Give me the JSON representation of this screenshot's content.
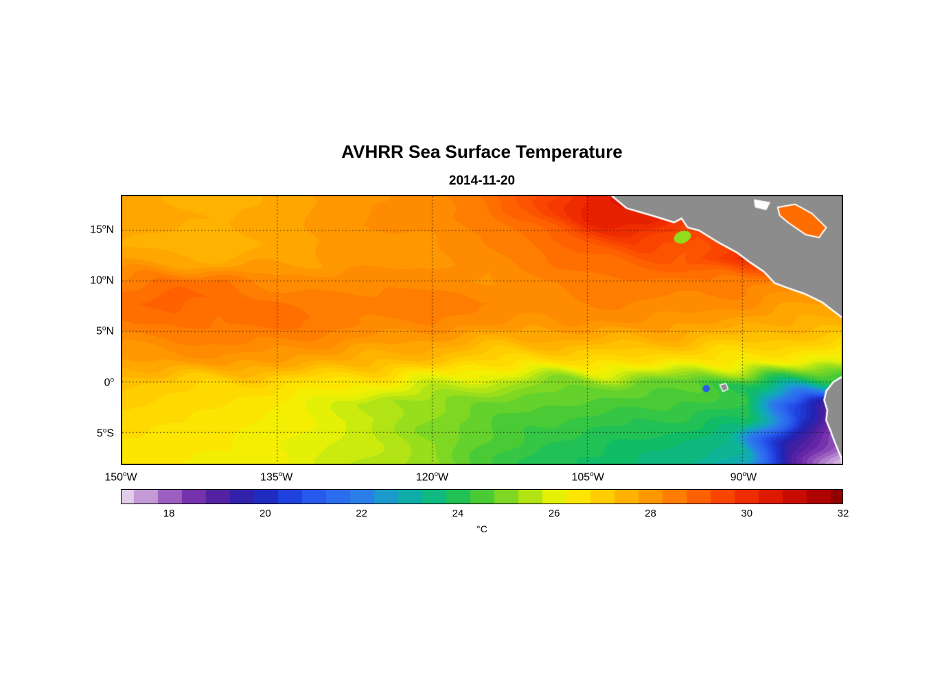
{
  "title": "AVHRR Sea Surface Temperature",
  "subtitle": "2014-11-20",
  "colorbar": {
    "label": "°C",
    "min": 17,
    "max": 32,
    "segment_step": 0.5,
    "tick_values": [
      18,
      20,
      22,
      24,
      26,
      28,
      30,
      32
    ]
  },
  "chart_data": {
    "type": "heatmap",
    "title": "AVHRR Sea Surface Temperature",
    "date": "2014-11-20",
    "units": "°C",
    "projection": "equirectangular",
    "lon_range": [
      -150,
      -80.4
    ],
    "lat_range": [
      -8.1,
      18.4
    ],
    "x_ticks": [
      {
        "value": -150,
        "label": "150",
        "hemi": "W"
      },
      {
        "value": -135,
        "label": "135",
        "hemi": "W"
      },
      {
        "value": -120,
        "label": "120",
        "hemi": "W"
      },
      {
        "value": -105,
        "label": "105",
        "hemi": "W"
      },
      {
        "value": -90,
        "label": "90",
        "hemi": "W"
      }
    ],
    "y_ticks": [
      {
        "value": 15,
        "label": "15",
        "hemi": "N"
      },
      {
        "value": 10,
        "label": "10",
        "hemi": "N"
      },
      {
        "value": 5,
        "label": "5",
        "hemi": "N"
      },
      {
        "value": 0,
        "label": "0",
        "hemi": ""
      },
      {
        "value": -5,
        "label": "5",
        "hemi": "S"
      }
    ],
    "gridline_lons": [
      -135,
      -120,
      -105,
      -90
    ],
    "gridline_lats": [
      15,
      10,
      5,
      0,
      -5
    ],
    "quantize_step": 0.25,
    "grid_lons": [
      -150,
      -145,
      -140,
      -135,
      -130,
      -125,
      -120,
      -115,
      -110,
      -105,
      -100,
      -95,
      -90,
      -85,
      -80
    ],
    "grid_lats": [
      18,
      16,
      14,
      12,
      10,
      8,
      6,
      4,
      2,
      0,
      -2,
      -4,
      -6,
      -8
    ],
    "sst_grid": [
      [
        27.8,
        27.6,
        27.5,
        27.7,
        27.9,
        28.1,
        28.3,
        28.6,
        29.4,
        30.3,
        30.5,
        30.0,
        29.3,
        29.0,
        29.0
      ],
      [
        27.8,
        27.7,
        27.6,
        27.8,
        28.0,
        28.2,
        28.3,
        28.5,
        29.0,
        30.1,
        30.3,
        29.6,
        29.3,
        29.0,
        29.0
      ],
      [
        27.6,
        27.5,
        27.5,
        27.7,
        27.9,
        28.0,
        28.1,
        28.3,
        28.7,
        29.2,
        29.7,
        29.3,
        29.8,
        29.3,
        29.0
      ],
      [
        27.8,
        27.7,
        27.6,
        27.8,
        27.9,
        28.0,
        28.1,
        28.2,
        28.5,
        28.8,
        29.1,
        29.0,
        30.0,
        29.0,
        28.8
      ],
      [
        28.4,
        28.8,
        28.6,
        28.2,
        28.3,
        28.3,
        28.2,
        28.1,
        28.3,
        28.5,
        28.6,
        28.5,
        28.6,
        28.3,
        28.2
      ],
      [
        28.8,
        29.0,
        28.8,
        28.6,
        28.4,
        28.5,
        28.6,
        28.4,
        28.3,
        28.4,
        28.4,
        28.3,
        28.2,
        28.0,
        27.8
      ],
      [
        28.6,
        28.8,
        28.6,
        28.8,
        28.5,
        28.3,
        28.4,
        28.2,
        28.0,
        28.2,
        28.1,
        28.0,
        27.8,
        27.6,
        27.5
      ],
      [
        28.2,
        28.3,
        28.5,
        28.4,
        28.2,
        28.0,
        27.8,
        27.6,
        27.5,
        27.6,
        27.5,
        27.3,
        27.2,
        27.0,
        27.0
      ],
      [
        27.8,
        27.9,
        28.0,
        27.8,
        27.6,
        27.4,
        27.2,
        26.8,
        26.6,
        26.8,
        26.6,
        26.5,
        26.4,
        26.2,
        26.0
      ],
      [
        27.2,
        27.0,
        26.9,
        26.8,
        26.6,
        26.3,
        26.0,
        25.6,
        25.2,
        25.0,
        24.9,
        24.8,
        23.9,
        24.0,
        23.2
      ],
      [
        27.0,
        26.8,
        26.6,
        26.4,
        26.0,
        25.4,
        25.2,
        24.9,
        24.7,
        24.6,
        24.5,
        24.4,
        24.2,
        21.0,
        19.0
      ],
      [
        26.8,
        26.6,
        26.5,
        26.3,
        26.0,
        25.6,
        25.0,
        24.7,
        24.4,
        24.3,
        24.1,
        24.0,
        23.8,
        20.0,
        18.0
      ],
      [
        26.6,
        26.5,
        26.4,
        26.2,
        25.9,
        25.6,
        25.2,
        24.6,
        24.2,
        24.0,
        23.8,
        23.6,
        23.2,
        19.4,
        17.5
      ],
      [
        26.5,
        26.4,
        26.3,
        26.2,
        25.8,
        25.5,
        25.2,
        24.5,
        24.0,
        23.8,
        23.6,
        23.4,
        22.6,
        19.2,
        17.2
      ]
    ],
    "colormap_stops": [
      [
        17.0,
        "#e2cdea"
      ],
      [
        17.5,
        "#c49ad6"
      ],
      [
        18.0,
        "#9b5fc0"
      ],
      [
        18.6,
        "#6e28a8"
      ],
      [
        19.2,
        "#441f9f"
      ],
      [
        19.8,
        "#2023b4"
      ],
      [
        20.5,
        "#1f41dd"
      ],
      [
        21.2,
        "#2a62f2"
      ],
      [
        22.0,
        "#2b7ee8"
      ],
      [
        22.6,
        "#16a0c8"
      ],
      [
        23.2,
        "#0cb49b"
      ],
      [
        23.8,
        "#12bd62"
      ],
      [
        24.4,
        "#3fc93a"
      ],
      [
        25.0,
        "#7ed723"
      ],
      [
        25.6,
        "#bce712"
      ],
      [
        26.1,
        "#eef303"
      ],
      [
        26.6,
        "#ffe100"
      ],
      [
        27.2,
        "#ffc300"
      ],
      [
        27.8,
        "#ffa300"
      ],
      [
        28.4,
        "#ff8300"
      ],
      [
        29.0,
        "#ff6000"
      ],
      [
        29.6,
        "#f94000"
      ],
      [
        30.2,
        "#e92200"
      ],
      [
        30.8,
        "#d10f00"
      ],
      [
        31.4,
        "#b40300"
      ],
      [
        32.0,
        "#920000"
      ]
    ],
    "land_color": "#8c8c8c",
    "coast_color": "#ffffff",
    "land_polygons": {
      "central_america": {
        "coast": [
          [
            -102.6,
            18.4
          ],
          [
            -101.2,
            17.2
          ],
          [
            -98.8,
            16.5
          ],
          [
            -96.6,
            15.8
          ],
          [
            -95.9,
            16.2
          ],
          [
            -95.3,
            15.3
          ],
          [
            -94.2,
            15.0
          ],
          [
            -92.3,
            13.8
          ],
          [
            -90.5,
            12.8
          ],
          [
            -89.2,
            11.8
          ],
          [
            -87.9,
            10.9
          ],
          [
            -86.9,
            9.8
          ],
          [
            -85.6,
            9.3
          ],
          [
            -83.9,
            8.7
          ],
          [
            -82.3,
            7.9
          ],
          [
            -81.3,
            7.1
          ],
          [
            -80.4,
            6.4
          ]
        ],
        "close": [
          [
            -80.4,
            18.4
          ]
        ]
      },
      "south_america": {
        "coast": [
          [
            -80.4,
            0.5
          ],
          [
            -81.2,
            0.0
          ],
          [
            -81.9,
            -0.9
          ],
          [
            -82.1,
            -1.8
          ],
          [
            -81.8,
            -2.8
          ],
          [
            -81.9,
            -3.8
          ],
          [
            -81.5,
            -4.8
          ],
          [
            -81.1,
            -5.9
          ],
          [
            -80.7,
            -6.9
          ],
          [
            -80.4,
            -7.6
          ],
          [
            -80.4,
            -8.1
          ]
        ],
        "close": []
      }
    },
    "caribbean_patch": {
      "sst": 28.8,
      "pts": [
        [
          -86.6,
          17.3
        ],
        [
          -84.9,
          17.6
        ],
        [
          -83.3,
          16.7
        ],
        [
          -81.9,
          15.3
        ],
        [
          -82.6,
          14.3
        ],
        [
          -83.9,
          14.6
        ],
        [
          -85.6,
          15.8
        ],
        [
          -86.4,
          16.5
        ]
      ]
    },
    "masked_patch_white": {
      "pts": [
        [
          -88.9,
          18.1
        ],
        [
          -87.3,
          17.8
        ],
        [
          -87.7,
          17.0
        ],
        [
          -88.8,
          17.3
        ]
      ]
    },
    "galapagos": {
      "pts": [
        [
          -92.2,
          -0.3
        ],
        [
          -91.6,
          -0.15
        ],
        [
          -91.4,
          -0.7
        ],
        [
          -91.9,
          -0.95
        ]
      ]
    },
    "features": {
      "tehuantepec_cool_patch": {
        "lon": -95.8,
        "lat": 14.35,
        "rx_deg": 0.85,
        "ry_deg": 0.6,
        "sst": 25.2
      },
      "equator_cool_spot": {
        "lon": -93.5,
        "lat": -0.65,
        "r_deg": 0.35,
        "sst": 21.0
      }
    }
  }
}
